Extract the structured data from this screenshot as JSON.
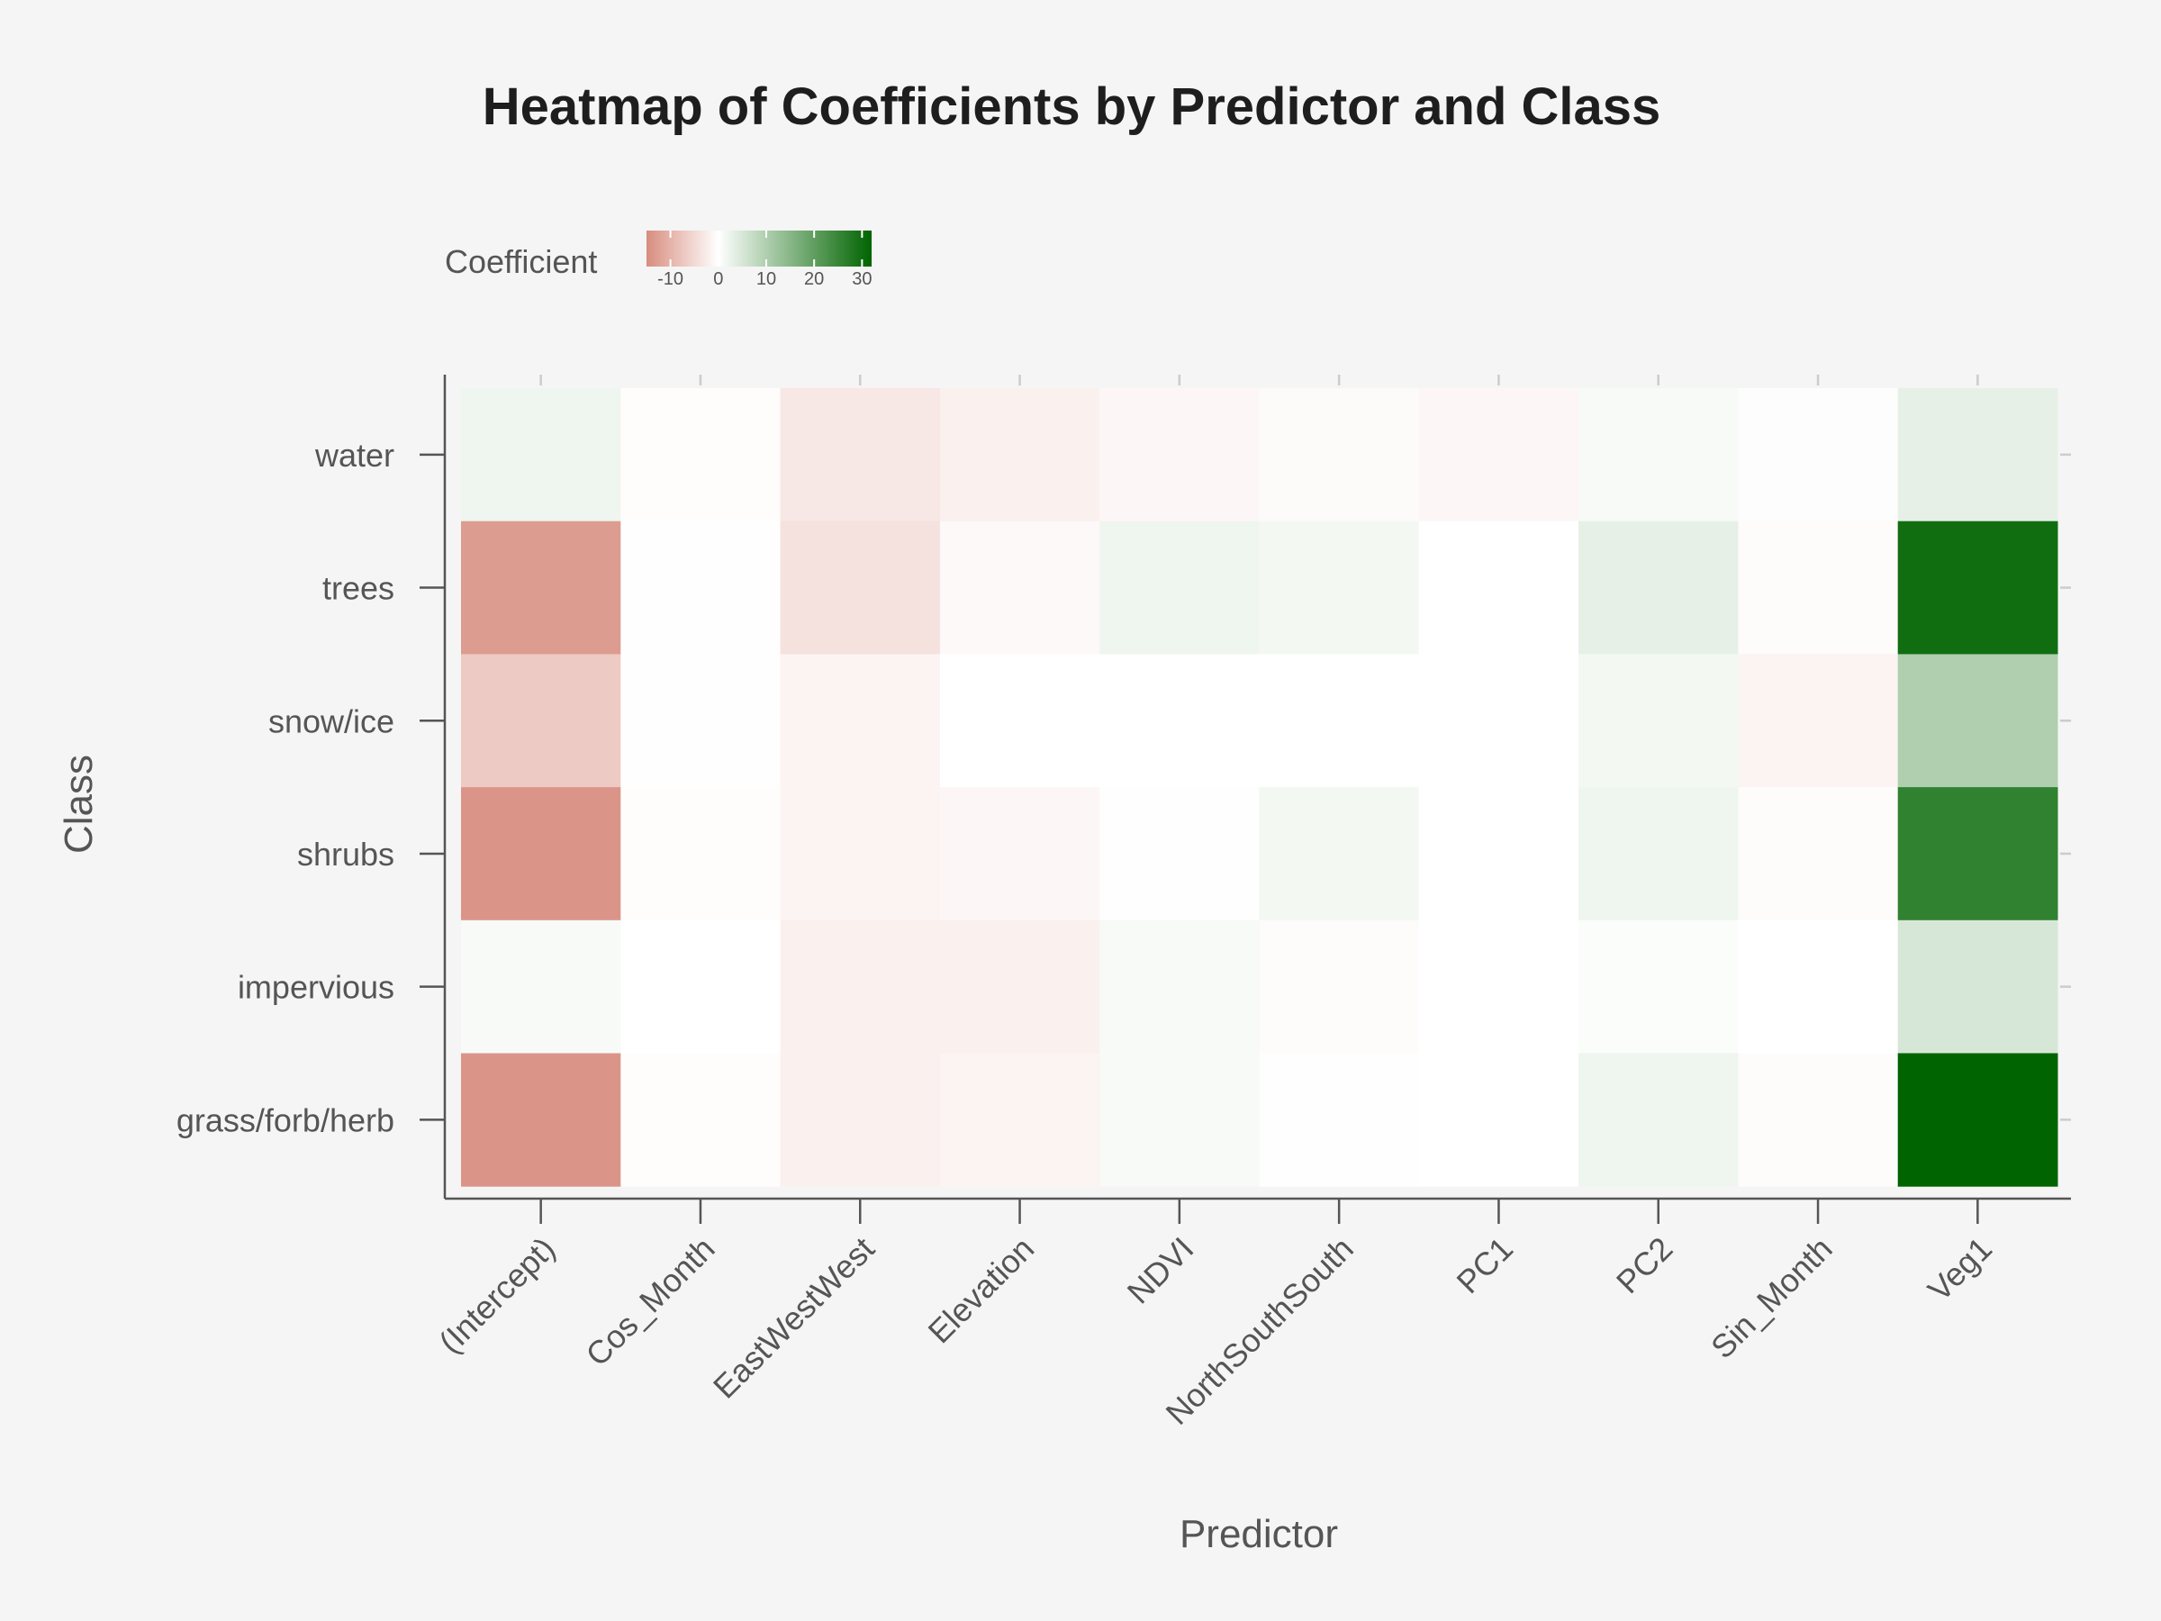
{
  "chart_data": {
    "type": "heatmap",
    "title": "Heatmap of Coefficients by Predictor and Class",
    "xlabel": "Predictor",
    "ylabel": "Class",
    "x_categories": [
      "(Intercept)",
      "Cos_Month",
      "EastWestWest",
      "Elevation",
      "NDVI",
      "NorthSouthSouth",
      "PC1",
      "PC2",
      "Sin_Month",
      "Veg1"
    ],
    "y_categories": [
      "water",
      "trees",
      "snow/ice",
      "shrubs",
      "impervious",
      "grass/forb/herb"
    ],
    "values": [
      [
        2,
        -0.3,
        -3,
        -2,
        -1,
        -0.6,
        -1,
        1,
        -0.2,
        3
      ],
      [
        -13,
        -0.1,
        -4,
        -0.8,
        2,
        1.5,
        0,
        3,
        -0.5,
        30
      ],
      [
        -7,
        -0.1,
        -1.5,
        0.1,
        0,
        0,
        0,
        1.5,
        -1.5,
        10
      ],
      [
        -14,
        -0.3,
        -1.5,
        -1,
        0.3,
        1.5,
        0,
        2,
        -0.5,
        26
      ],
      [
        1,
        0,
        -2,
        -2,
        1,
        -0.5,
        0,
        0.5,
        0,
        5
      ],
      [
        -14,
        -0.3,
        -2,
        -1.5,
        1,
        0.2,
        0,
        2,
        -0.5,
        32
      ]
    ],
    "legend": {
      "title": "Coefficient",
      "ticks": [
        -10,
        0,
        10,
        20,
        30
      ],
      "range": [
        -15,
        32
      ],
      "low_color": "#d88d7f",
      "mid_color": "#ffffff",
      "high_color": "#006400",
      "placement": "top"
    },
    "grid": false
  }
}
